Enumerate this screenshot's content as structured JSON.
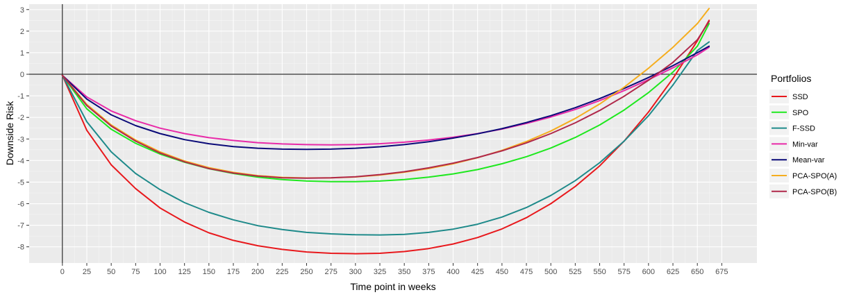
{
  "chart_data": {
    "type": "line",
    "xlabel": "Time point in weeks",
    "ylabel": "Downside Risk",
    "xlim": [
      -34,
      711
    ],
    "ylim": [
      -8.75,
      3.25
    ],
    "xticks": [
      0,
      25,
      50,
      75,
      100,
      125,
      150,
      175,
      200,
      225,
      250,
      275,
      300,
      325,
      350,
      375,
      400,
      425,
      450,
      475,
      500,
      525,
      550,
      575,
      600,
      625,
      650,
      675
    ],
    "yticks": [
      -8,
      -7,
      -6,
      -5,
      -4,
      -3,
      -2,
      -1,
      0,
      1,
      2,
      3
    ],
    "grid": true,
    "reference_lines": {
      "x": 0,
      "y": 0
    },
    "legend": {
      "title": "Portfolios",
      "position": "right"
    },
    "x": [
      0,
      25,
      50,
      75,
      100,
      125,
      150,
      175,
      200,
      225,
      250,
      275,
      300,
      325,
      350,
      375,
      400,
      425,
      450,
      475,
      500,
      525,
      550,
      575,
      600,
      625,
      650,
      662
    ],
    "series": [
      {
        "name": "SSD",
        "color": "#e8181c",
        "values": [
          -0.05,
          -2.6,
          -4.2,
          -5.3,
          -6.2,
          -6.85,
          -7.35,
          -7.7,
          -7.95,
          -8.12,
          -8.24,
          -8.3,
          -8.32,
          -8.3,
          -8.22,
          -8.08,
          -7.87,
          -7.57,
          -7.17,
          -6.65,
          -6.0,
          -5.2,
          -4.25,
          -3.1,
          -1.75,
          -0.2,
          1.55,
          2.5
        ]
      },
      {
        "name": "SPO",
        "color": "#1ee81e",
        "values": [
          -0.05,
          -1.6,
          -2.55,
          -3.2,
          -3.7,
          -4.08,
          -4.38,
          -4.6,
          -4.77,
          -4.88,
          -4.95,
          -4.98,
          -4.98,
          -4.95,
          -4.88,
          -4.77,
          -4.62,
          -4.42,
          -4.15,
          -3.82,
          -3.42,
          -2.93,
          -2.35,
          -1.66,
          -0.85,
          0.1,
          1.3,
          2.35
        ]
      },
      {
        "name": "F-SSD",
        "color": "#1e8a8a",
        "values": [
          -0.05,
          -2.2,
          -3.6,
          -4.6,
          -5.35,
          -5.95,
          -6.4,
          -6.75,
          -7.02,
          -7.2,
          -7.33,
          -7.4,
          -7.44,
          -7.45,
          -7.42,
          -7.33,
          -7.18,
          -6.95,
          -6.62,
          -6.18,
          -5.62,
          -4.93,
          -4.1,
          -3.1,
          -1.92,
          -0.5,
          1.1,
          1.5
        ]
      },
      {
        "name": "Min-var",
        "color": "#e82aa8",
        "values": [
          -0.05,
          -1.05,
          -1.7,
          -2.15,
          -2.5,
          -2.75,
          -2.94,
          -3.07,
          -3.17,
          -3.23,
          -3.26,
          -3.27,
          -3.26,
          -3.22,
          -3.15,
          -3.05,
          -2.92,
          -2.75,
          -2.54,
          -2.28,
          -1.98,
          -1.63,
          -1.22,
          -0.76,
          -0.25,
          0.3,
          0.9,
          1.25
        ]
      },
      {
        "name": "Mean-var",
        "color": "#0a0a78",
        "values": [
          -0.05,
          -1.15,
          -1.88,
          -2.38,
          -2.75,
          -3.03,
          -3.22,
          -3.35,
          -3.43,
          -3.47,
          -3.48,
          -3.47,
          -3.43,
          -3.36,
          -3.26,
          -3.13,
          -2.96,
          -2.76,
          -2.52,
          -2.24,
          -1.92,
          -1.55,
          -1.13,
          -0.66,
          -0.15,
          0.4,
          1.0,
          1.3
        ]
      },
      {
        "name": "PCA-SPO(A)",
        "color": "#f5ad1e",
        "values": [
          -0.05,
          -1.4,
          -2.35,
          -3.05,
          -3.6,
          -4.02,
          -4.33,
          -4.55,
          -4.7,
          -4.78,
          -4.81,
          -4.8,
          -4.76,
          -4.67,
          -4.54,
          -4.37,
          -4.15,
          -3.87,
          -3.53,
          -3.12,
          -2.63,
          -2.05,
          -1.38,
          -0.6,
          0.28,
          1.25,
          2.35,
          3.05
        ]
      },
      {
        "name": "PCA-SPO(B)",
        "color": "#b0284a",
        "values": [
          -0.05,
          -1.45,
          -2.4,
          -3.1,
          -3.65,
          -4.06,
          -4.37,
          -4.58,
          -4.72,
          -4.8,
          -4.82,
          -4.8,
          -4.75,
          -4.65,
          -4.52,
          -4.34,
          -4.12,
          -3.86,
          -3.55,
          -3.18,
          -2.75,
          -2.25,
          -1.68,
          -1.02,
          -0.28,
          0.55,
          1.6,
          2.45
        ]
      }
    ]
  }
}
